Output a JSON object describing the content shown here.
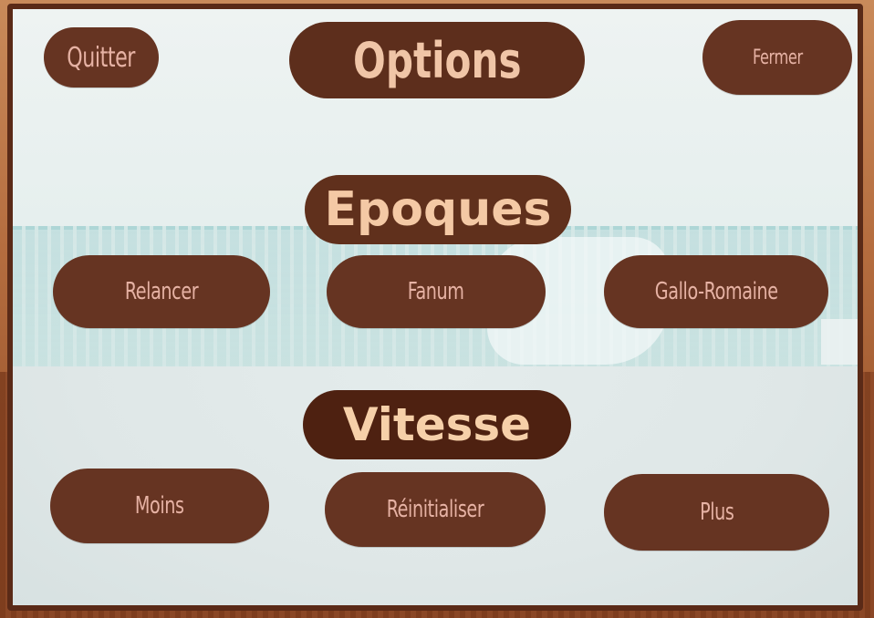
{
  "header": {
    "quit_label": "Quitter",
    "title": "Options",
    "close_label": "Fermer"
  },
  "epochs": {
    "heading": "Epoques",
    "buttons": [
      "Relancer",
      "Fanum",
      "Gallo-Romaine"
    ]
  },
  "speed": {
    "heading": "Vitesse",
    "buttons": [
      "Moins",
      "Réinitialiser",
      "Plus"
    ]
  },
  "colors": {
    "button_fill": "#663422",
    "button_text": "#e6b2a4",
    "heading_text": "#f4c9a5",
    "frame_border": "#5a2a17"
  }
}
